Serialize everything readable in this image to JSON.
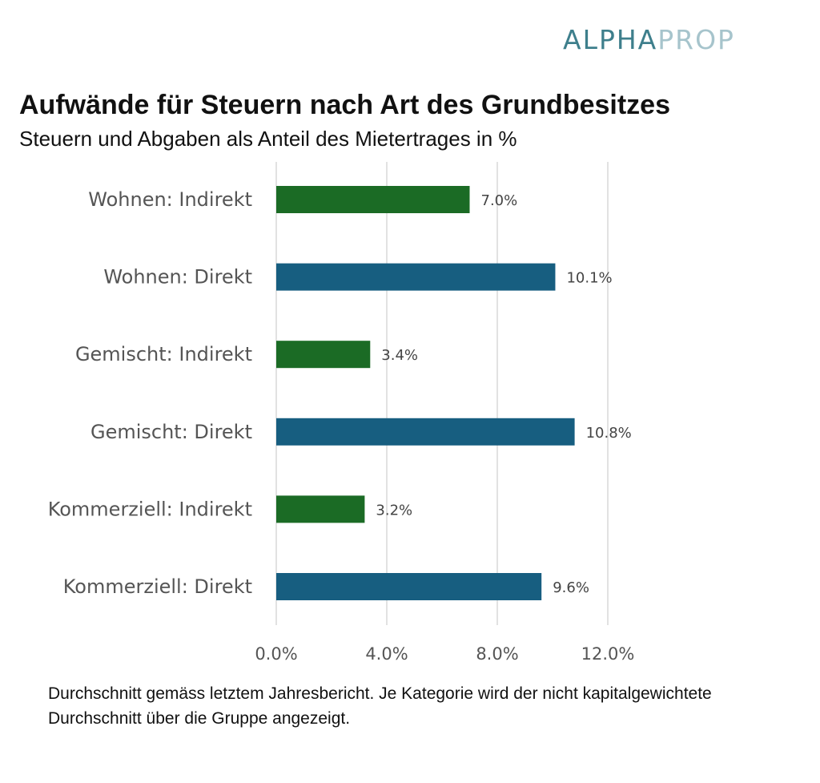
{
  "logo": {
    "part1": "ALPHA",
    "part2": "PROP",
    "color1": "#3e7f8c",
    "color2": "#a6c4cc"
  },
  "header": {
    "title": "Aufwände für Steuern nach Art des Grundbesitzes",
    "subtitle": "Steuern und Abgaben als Anteil des Mietertrages in %"
  },
  "footnote": "Durchschnitt gemäss letztem Jahresbericht. Je Kategorie wird der nicht kapitalgewichtete Durchschnitt über die Gruppe angezeigt.",
  "chart_data": {
    "type": "bar",
    "orientation": "horizontal",
    "title": "Aufwände für Steuern nach Art des Grundbesitzes",
    "subtitle": "Steuern und Abgaben als Anteil des Mietertrages in %",
    "xlabel": "",
    "ylabel": "",
    "categories": [
      "Wohnen: Indirekt",
      "Wohnen: Direkt",
      "Gemischt: Indirekt",
      "Gemischt: Direkt",
      "Kommerziell: Indirekt",
      "Kommerziell: Direkt"
    ],
    "values": [
      7.0,
      10.1,
      3.4,
      10.8,
      3.2,
      9.6
    ],
    "value_labels": [
      "7.0%",
      "10.1%",
      "3.4%",
      "10.8%",
      "3.2%",
      "9.6%"
    ],
    "bar_colors": [
      "#1b6b25",
      "#175e80",
      "#1b6b25",
      "#175e80",
      "#1b6b25",
      "#175e80"
    ],
    "xlim": [
      0,
      12
    ],
    "xticks": [
      0,
      4,
      8,
      12
    ],
    "xtick_labels": [
      "0.0%",
      "4.0%",
      "8.0%",
      "12.0%"
    ],
    "grid": "vertical",
    "legend": "none"
  }
}
